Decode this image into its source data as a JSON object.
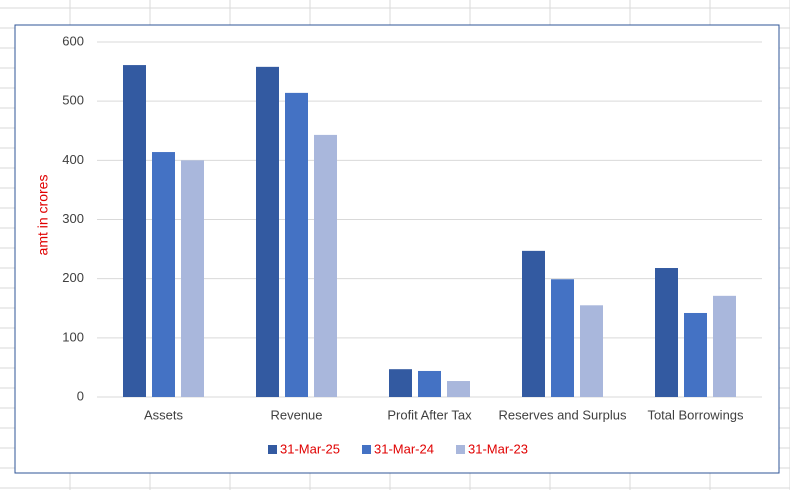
{
  "chart_data": {
    "type": "bar",
    "y_label": "amt in crores",
    "categories": [
      "Assets",
      "Revenue",
      "Profit After Tax",
      "Reserves and Surplus",
      "Total Borrowings"
    ],
    "series": [
      {
        "name": "31-Mar-25",
        "color": "#335aa1",
        "values": [
          561,
          558,
          47,
          247,
          218
        ]
      },
      {
        "name": "31-Mar-24",
        "color": "#4472c4",
        "values": [
          414,
          514,
          44,
          199,
          142
        ]
      },
      {
        "name": "31-Mar-23",
        "color": "#a9b7dc",
        "values": [
          400,
          443,
          27,
          155,
          171
        ]
      }
    ],
    "ylim": [
      0,
      600
    ],
    "yticks": [
      0,
      100,
      200,
      300,
      400,
      500,
      600
    ],
    "grid": true,
    "legend": "bottom"
  }
}
